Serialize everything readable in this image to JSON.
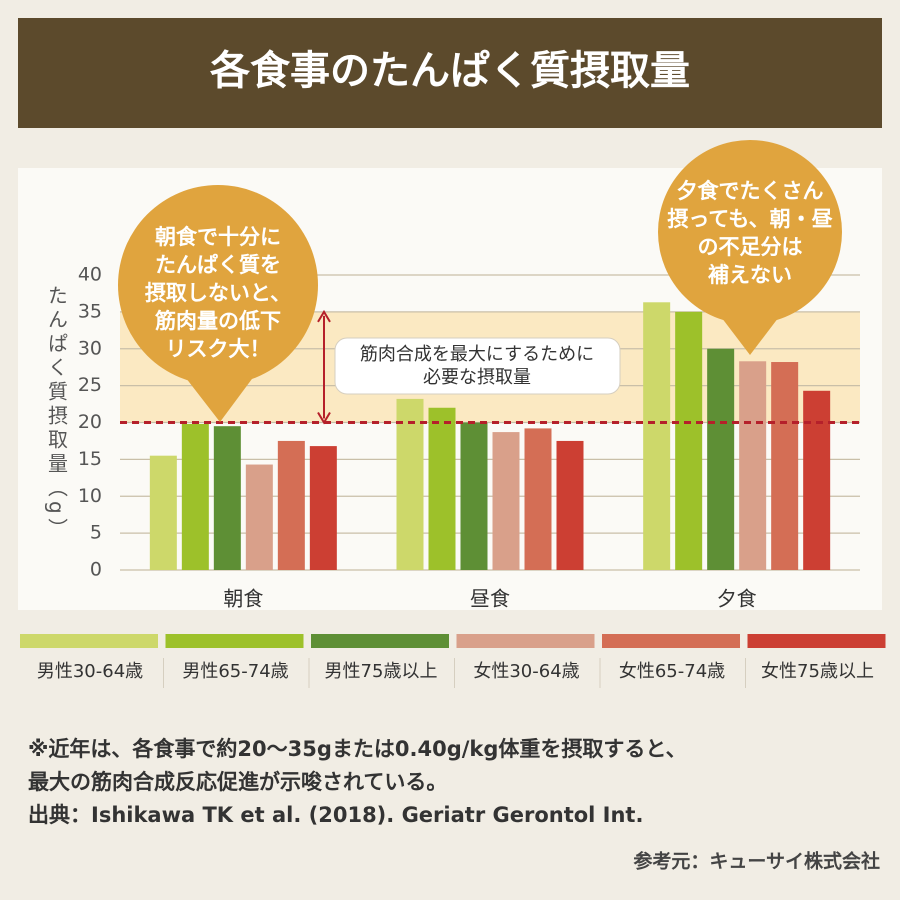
{
  "header": {
    "title": "各食事のたんぱく質摂取量"
  },
  "chart_data": {
    "type": "bar",
    "ylabel": "たんぱく質摂取量（g）",
    "categories": [
      "朝食",
      "昼食",
      "夕食"
    ],
    "series": [
      {
        "name": "男性30-64歳",
        "color": "#cdd86a",
        "values": [
          15.5,
          23.2,
          36.3
        ]
      },
      {
        "name": "男性65-74歳",
        "color": "#9dc12a",
        "values": [
          19.8,
          22.0,
          35.0
        ]
      },
      {
        "name": "男性75歳以上",
        "color": "#5e8f35",
        "values": [
          19.5,
          20.0,
          30.0
        ]
      },
      {
        "name": "女性30-64歳",
        "color": "#d9a08a",
        "values": [
          14.3,
          18.7,
          28.3
        ]
      },
      {
        "name": "女性65-74歳",
        "color": "#d46e55",
        "values": [
          17.5,
          19.2,
          28.2
        ]
      },
      {
        "name": "女性75歳以上",
        "color": "#cc3f33",
        "values": [
          16.8,
          17.5,
          24.3
        ]
      }
    ],
    "ylim": [
      0,
      40
    ],
    "yticks": [
      0,
      5,
      10,
      15,
      20,
      25,
      30,
      35,
      40
    ],
    "grid": true,
    "legend": "bottom",
    "reference_line": 20,
    "target_range": [
      20,
      35
    ],
    "annotations": {
      "left": [
        "朝食で十分に",
        "たんぱく質を",
        "摂取しないと、",
        "筋肉量の低下",
        "リスク大！"
      ],
      "right": [
        "夕食でたくさん",
        "摂っても、朝・昼",
        "の不足分は",
        "補えない"
      ],
      "range": [
        "筋肉合成を最大にするために",
        "必要な摂取量"
      ]
    }
  },
  "footnote": {
    "lines": [
      "※近年は、各食事で約20〜35gまたは0.40g/kg体重を摂取すると、",
      "最大の筋肉合成反応促進が示唆されている。",
      "出典：Ishikawa TK et al. (2018). Geriatr Gerontol Int."
    ],
    "credit": "参考元：キューサイ株式会社"
  }
}
